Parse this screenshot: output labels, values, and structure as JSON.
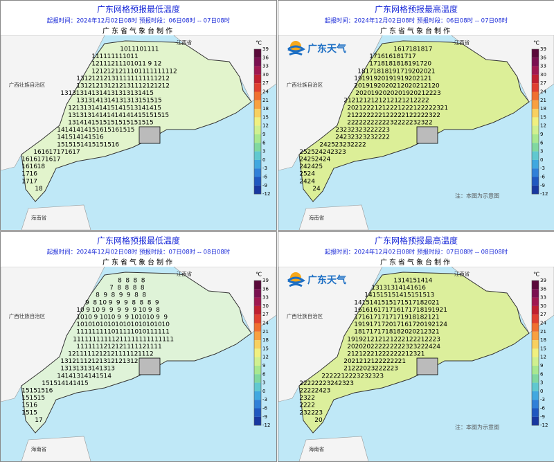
{
  "colorbar": {
    "unit": "℃",
    "ticks": [
      39,
      36,
      33,
      30,
      27,
      24,
      21,
      18,
      15,
      12,
      9,
      6,
      3,
      0,
      -3,
      -6,
      -9,
      -12
    ],
    "colors": [
      "#5a0a3a",
      "#7a1050",
      "#a01850",
      "#c02030",
      "#e04030",
      "#f07030",
      "#f8a040",
      "#f8d060",
      "#f0f080",
      "#d0f090",
      "#a8e890",
      "#80d8a0",
      "#60c8d0",
      "#40a8e0",
      "#3080d8",
      "#2058c0",
      "#1838a0"
    ]
  },
  "panels": [
    {
      "title": "广东网格预报最低温度",
      "time": "起报时间：2024年12月02日08时    预报时段：06日08时 -- 07日08时",
      "maker": "广东省气象台制作",
      "provinces": [
        "江西省",
        "广西壮族自治区",
        "海南省"
      ],
      "grid": [
        [
          10,
          11,
          10,
          11,
          11
        ],
        [
          11,
          11,
          11,
          11,
          10,
          11
        ],
        [
          12,
          11,
          12,
          11,
          10,
          10,
          11,
          9,
          12
        ],
        [
          12,
          12,
          12,
          12,
          11,
          10,
          11,
          11,
          11,
          11,
          12
        ],
        [
          13,
          12,
          12,
          12,
          13,
          11,
          11,
          11,
          11,
          11,
          12,
          12
        ],
        [
          13,
          12,
          12,
          13,
          12,
          12,
          13,
          11,
          12,
          12,
          12,
          12
        ],
        [
          13,
          13,
          13,
          14,
          13,
          14,
          13,
          13,
          13,
          13,
          14,
          15
        ],
        [
          13,
          13,
          14,
          13,
          14,
          13,
          13,
          13,
          15,
          15,
          15
        ],
        [
          12,
          13,
          13,
          14,
          14,
          15,
          14,
          15,
          13,
          14,
          14,
          15
        ],
        [
          13,
          13,
          13,
          14,
          14,
          14,
          14,
          14,
          14,
          15,
          15,
          15,
          15
        ],
        [
          13,
          14,
          14,
          15,
          15,
          15,
          15,
          15,
          15,
          15,
          15
        ],
        [
          14,
          14,
          14,
          14,
          15,
          16,
          15,
          16,
          15,
          15
        ],
        [
          14,
          15,
          14,
          14,
          15,
          16
        ],
        [
          15,
          15,
          15,
          14,
          15,
          15,
          15,
          16
        ],
        [
          16,
          16,
          17,
          17,
          16,
          17
        ],
        [
          16,
          16,
          17,
          16,
          17
        ],
        [
          16,
          16,
          18
        ],
        [
          17,
          16
        ],
        [
          17,
          17
        ],
        [
          18
        ]
      ]
    },
    {
      "title": "广东网格预报最高温度",
      "time": "起报时间：2024年12月02日08时    预报时段：06日08时 -- 07日08时",
      "maker": "广东省气象台制作",
      "provinces": [
        "江西省",
        "广西壮族自治区",
        "海南省"
      ],
      "logo": "广东天气",
      "note": "注：本图为示意图",
      "grid": [
        [
          16,
          17,
          18,
          18,
          17
        ],
        [
          17,
          16,
          16,
          18,
          17,
          17
        ],
        [
          17,
          18,
          18,
          18,
          18,
          19,
          17,
          20
        ],
        [
          18,
          17,
          18,
          18,
          19,
          17,
          19,
          20,
          20,
          21
        ],
        [
          19,
          19,
          19,
          20,
          19,
          19,
          19,
          20,
          21,
          21
        ],
        [
          20,
          19,
          19,
          20,
          20,
          21,
          20,
          20,
          21,
          21,
          20
        ],
        [
          20,
          20,
          19,
          20,
          20,
          20,
          19,
          20,
          21,
          22,
          23
        ],
        [
          21,
          21,
          21,
          21,
          21,
          21,
          21,
          21,
          21,
          22,
          22
        ],
        [
          20,
          21,
          22,
          21,
          21,
          22,
          21,
          22,
          21,
          22,
          22,
          23,
          21
        ],
        [
          21,
          22,
          22,
          22,
          21,
          22,
          22,
          21,
          22,
          22,
          23,
          22
        ],
        [
          22,
          22,
          22,
          22,
          22,
          23,
          22,
          22,
          23,
          23,
          22
        ],
        [
          23,
          23,
          23,
          23,
          22,
          22,
          23
        ],
        [
          24,
          23,
          23,
          23,
          23,
          22,
          22
        ],
        [
          24,
          25,
          23,
          23,
          22,
          22
        ],
        [
          25,
          25,
          24,
          24,
          23,
          23
        ],
        [
          24,
          25,
          24,
          24
        ],
        [
          24,
          24,
          25
        ],
        [
          25,
          24
        ],
        [
          24,
          24
        ],
        [
          24
        ]
      ]
    },
    {
      "title": "广东网格预报最低温度",
      "time": "起报时间：2024年12月02日08时    预报时段：07日08时 -- 08日08时",
      "maker": "广东省气象台制作",
      "provinces": [
        "江西省",
        "广西壮族自治区",
        "海南省"
      ],
      "grid": [
        [
          8,
          8,
          8,
          8
        ],
        [
          7,
          8,
          8,
          8,
          8
        ],
        [
          8,
          9,
          8,
          9,
          9,
          8,
          8
        ],
        [
          9,
          8,
          10,
          9,
          9,
          9,
          8,
          8,
          8,
          9
        ],
        [
          10,
          9,
          10,
          9,
          9,
          9,
          9,
          9,
          10,
          9,
          8
        ],
        [
          10,
          10,
          9,
          10,
          10,
          9,
          9,
          10,
          10,
          10,
          9,
          9
        ],
        [
          10,
          10,
          10,
          10,
          10,
          10,
          10,
          10,
          10,
          10,
          10,
          10
        ],
        [
          11,
          11,
          11,
          11,
          10,
          11,
          11,
          10,
          10,
          11,
          11,
          11
        ],
        [
          11,
          11,
          11,
          11,
          11,
          12,
          11,
          11,
          11,
          11,
          11,
          11,
          11
        ],
        [
          11,
          11,
          11,
          12,
          12,
          12,
          11,
          11,
          12,
          11,
          11
        ],
        [
          12,
          11,
          11,
          12,
          12,
          12,
          11,
          11,
          12,
          11,
          12
        ],
        [
          13,
          12,
          11,
          12,
          12,
          13,
          12,
          12,
          13,
          12
        ],
        [
          13,
          13,
          13,
          13,
          14,
          13,
          13
        ],
        [
          14,
          14,
          13,
          14,
          14,
          15,
          14
        ],
        [
          15,
          15,
          14,
          14,
          14,
          15
        ],
        [
          15,
          15,
          15,
          16
        ],
        [
          15,
          15,
          15
        ],
        [
          15,
          16
        ],
        [
          15,
          15
        ],
        [
          17
        ]
      ]
    },
    {
      "title": "广东网格预报最高温度",
      "time": "起报时间：2024年12月02日08时    预报时段：07日08时 -- 08日08时",
      "maker": "广东省气象台制作",
      "provinces": [
        "江西省",
        "广西壮族自治区",
        "海南省"
      ],
      "logo": "广东天气",
      "note": "注：本图为示意图",
      "grid": [
        [
          13,
          14,
          15,
          14,
          14
        ],
        [
          13,
          13,
          13,
          14,
          14,
          16,
          16
        ],
        [
          14,
          15,
          15,
          15,
          14,
          15,
          15,
          15,
          13
        ],
        [
          14,
          15,
          14,
          15,
          15,
          17,
          15,
          17,
          18,
          20,
          21
        ],
        [
          16,
          16,
          16,
          17,
          17,
          16,
          17,
          17,
          18,
          19,
          19,
          21
        ],
        [
          17,
          16,
          17,
          17,
          17,
          17,
          19,
          18,
          18,
          21,
          21
        ],
        [
          19,
          19,
          17,
          17,
          20,
          17,
          16,
          17,
          20,
          19,
          21,
          24
        ],
        [
          18,
          17,
          17,
          17,
          18,
          18,
          20,
          20,
          21,
          23,
          21
        ],
        [
          19,
          19,
          21,
          21,
          21,
          21,
          22,
          21,
          22,
          21,
          22,
          23
        ],
        [
          20,
          20,
          20,
          22,
          22,
          22,
          22,
          23,
          23,
          22,
          24,
          24
        ],
        [
          21,
          21,
          22,
          21,
          22,
          22,
          22,
          21,
          23,
          21
        ],
        [
          20,
          21,
          21,
          21,
          22,
          22,
          22,
          21
        ],
        [
          21,
          22,
          20,
          23,
          22,
          22,
          23
        ],
        [
          22,
          22,
          21,
          22,
          23,
          23,
          23,
          23
        ],
        [
          22,
          22,
          22,
          23,
          24,
          23,
          23
        ],
        [
          22,
          22,
          24,
          23
        ],
        [
          23,
          22
        ],
        [
          22,
          22
        ],
        [
          23,
          22,
          23
        ],
        [
          20
        ]
      ]
    }
  ]
}
